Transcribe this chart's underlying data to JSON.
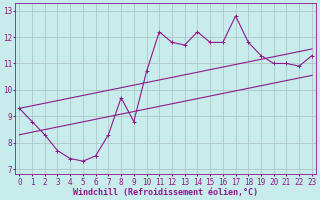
{
  "title": "",
  "xlabel": "Windchill (Refroidissement éolien,°C)",
  "ylabel": "",
  "bg_color": "#c8ecec",
  "line_color": "#8b1a8b",
  "grid_color": "#b0c8c8",
  "ylim": [
    6.8,
    13.3
  ],
  "xlim": [
    -0.3,
    23.3
  ],
  "yticks": [
    7,
    8,
    9,
    10,
    11,
    12,
    13
  ],
  "xticks": [
    0,
    1,
    2,
    3,
    4,
    5,
    6,
    7,
    8,
    9,
    10,
    11,
    12,
    13,
    14,
    15,
    16,
    17,
    18,
    19,
    20,
    21,
    22,
    23
  ],
  "line1_x": [
    0,
    1,
    2,
    3,
    4,
    5,
    6,
    7,
    8,
    9,
    10,
    11,
    12,
    13,
    14,
    15,
    16,
    17,
    18,
    19,
    20,
    21,
    22,
    23
  ],
  "line1_y": [
    9.3,
    8.8,
    8.3,
    7.7,
    7.4,
    7.3,
    7.5,
    8.3,
    9.7,
    8.8,
    10.7,
    12.2,
    11.8,
    11.7,
    12.2,
    11.8,
    11.8,
    12.8,
    11.8,
    11.3,
    11.0,
    11.0,
    10.9,
    11.3
  ],
  "line2_x": [
    0,
    23
  ],
  "line2_y": [
    8.3,
    10.55
  ],
  "line3_x": [
    0,
    23
  ],
  "line3_y": [
    9.3,
    11.55
  ],
  "marker": "+",
  "markersize": 3,
  "linewidth": 0.8,
  "font_color": "#8b1a8b",
  "font_size": 6,
  "tick_font_size": 5.5
}
